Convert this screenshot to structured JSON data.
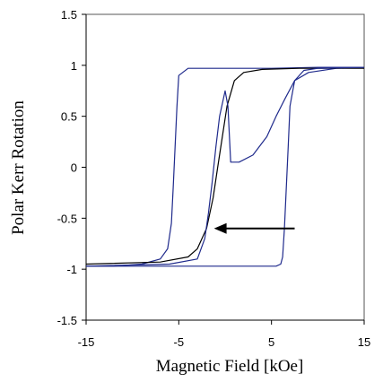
{
  "chart_data": {
    "type": "line",
    "title": "",
    "xlabel": "Magnetic Field [kOe]",
    "ylabel": "Polar Kerr Rotation",
    "xlim": [
      -15,
      15
    ],
    "ylim": [
      -1.5,
      1.5
    ],
    "xticks": [
      -15,
      -5,
      5,
      15
    ],
    "yticks": [
      1.5,
      1,
      0.5,
      0,
      -0.5,
      -1,
      -1.5
    ],
    "grid": false,
    "legend": "none",
    "series": [
      {
        "color": "#1f2a8c",
        "x": [
          -15,
          -12,
          -9,
          -7,
          -6.2,
          -5.8,
          -5.6,
          -5.4,
          -5.2,
          -5,
          -4,
          0,
          5,
          10,
          15
        ],
        "y": [
          -0.97,
          -0.97,
          -0.95,
          -0.9,
          -0.8,
          -0.55,
          -0.2,
          0.2,
          0.6,
          0.9,
          0.97,
          0.97,
          0.97,
          0.98,
          0.98
        ]
      },
      {
        "color": "#1f2a8c",
        "x": [
          15,
          12,
          9,
          7.5,
          7,
          6.8,
          6.6,
          6.4,
          6.2,
          6,
          5.5,
          0,
          -5,
          -10,
          -15
        ],
        "y": [
          0.98,
          0.97,
          0.93,
          0.85,
          0.6,
          0.2,
          -0.2,
          -0.6,
          -0.88,
          -0.95,
          -0.97,
          -0.97,
          -0.97,
          -0.97,
          -0.97
        ]
      },
      {
        "color": "#000000",
        "x": [
          -15,
          -7,
          -4,
          -3,
          -2,
          -1.3,
          -0.8,
          -0.3,
          0.2,
          1,
          2,
          4,
          8,
          15
        ],
        "y": [
          -0.95,
          -0.93,
          -0.88,
          -0.8,
          -0.6,
          -0.3,
          0,
          0.3,
          0.6,
          0.85,
          0.93,
          0.96,
          0.97,
          0.97
        ]
      },
      {
        "color": "#1f2a8c",
        "x": [
          -15,
          -6,
          -3,
          -2.2,
          -1.8,
          -1.4,
          -1,
          -0.6,
          0,
          0.3,
          0.6,
          1.5,
          3,
          4.5,
          5.5,
          6.5,
          7.5,
          8.5,
          10,
          15
        ],
        "y": [
          -0.97,
          -0.95,
          -0.9,
          -0.7,
          -0.45,
          -0.15,
          0.2,
          0.5,
          0.75,
          0.6,
          0.05,
          0.05,
          0.12,
          0.3,
          0.5,
          0.68,
          0.85,
          0.95,
          0.97,
          0.98
        ]
      }
    ],
    "annotations": [
      {
        "type": "arrow",
        "direction": "left",
        "from": [
          7.5,
          -0.6
        ],
        "to": [
          -1.2,
          -0.6
        ]
      }
    ]
  }
}
